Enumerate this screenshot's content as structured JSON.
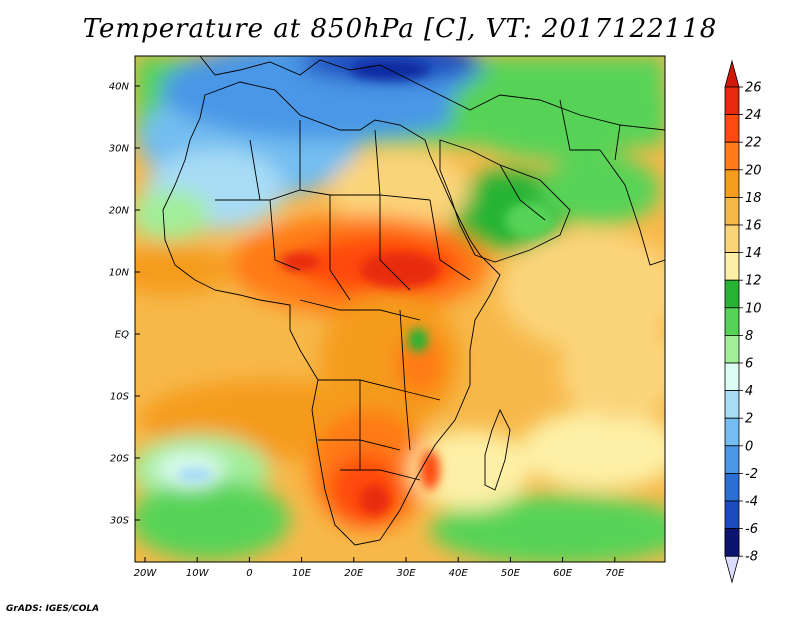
{
  "title": "Temperature at 850hPa [C], VT: 2017122118",
  "credit": "GrADS: IGES/COLA",
  "lon_labels": [
    "20W",
    "10W",
    "0",
    "10E",
    "20E",
    "30E",
    "40E",
    "50E",
    "60E",
    "70E"
  ],
  "lat_labels": [
    "40N",
    "30N",
    "20N",
    "10N",
    "EQ",
    "10S",
    "20S",
    "30S"
  ],
  "colorbar": {
    "levels": [
      "26",
      "24",
      "22",
      "20",
      "18",
      "16",
      "14",
      "12",
      "10",
      "8",
      "6",
      "4",
      "2",
      "0",
      "-2",
      "-4",
      "-6",
      "-8"
    ],
    "colors": [
      "#e8290e",
      "#ff4a0f",
      "#ff7a18",
      "#f59b1e",
      "#f7b84a",
      "#fbd47a",
      "#fdf0a6",
      "#27b434",
      "#56d356",
      "#a3ee9a",
      "#dcfbf2",
      "#a8dcf5",
      "#73bdf0",
      "#4a97e6",
      "#2b6fd5",
      "#1b4cc0",
      "#0f2aa0",
      "#0b1470"
    ],
    "top_triangle": "#d21a0a",
    "bottom_triangle": "#dcdcfc"
  }
}
